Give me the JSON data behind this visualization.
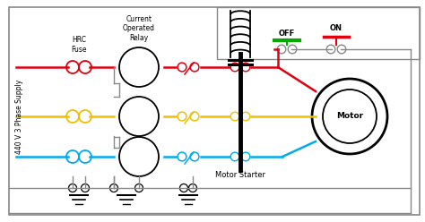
{
  "bg_color": "#ffffff",
  "line_red": "#e00010",
  "line_yellow": "#f0c000",
  "line_blue": "#00aaee",
  "line_gray": "#888888",
  "line_green": "#00aa00",
  "line_dark": "#333333",
  "text_color": "#000000",
  "label_supply": "440 V 3 Phase Supply",
  "label_hrc": "HRC\nFuse",
  "label_relay": "Current\nOperated\nRelay",
  "label_off": "OFF",
  "label_on": "ON",
  "label_motor": "Motor",
  "label_starter": "Motor Starter"
}
